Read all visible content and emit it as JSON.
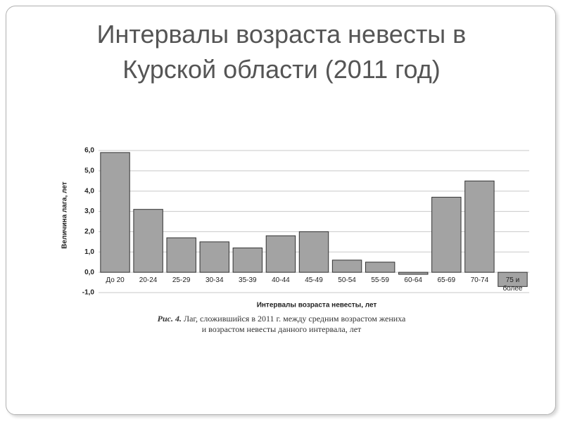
{
  "chart_data": {
    "type": "bar",
    "title": "Интервалы возраста невесты в Курской области (2011 год)",
    "y_label": "Величина лага, лет",
    "x_label": "Интервалы возраста невесты, лет",
    "caption": {
      "figure_label": "Рис. 4.",
      "lines": [
        "Лаг, сложившийся в 2011 г. между средним возрастом жениха",
        "и возрастом невесты данного интервала, лет"
      ]
    },
    "categories": [
      "До 20",
      "20-24",
      "25-29",
      "30-34",
      "35-39",
      "40-44",
      "45-49",
      "50-54",
      "55-59",
      "60-64",
      "65-69",
      "70-74",
      "75 и более"
    ],
    "values": [
      5.9,
      3.1,
      1.7,
      1.5,
      1.2,
      1.8,
      2.0,
      0.6,
      0.5,
      -0.1,
      3.7,
      4.5,
      -0.7
    ],
    "color": "#a3a3a3",
    "ylim": [
      -1,
      6
    ],
    "yticks": [
      {
        "value": -1,
        "label": "-1,0"
      },
      {
        "value": 0,
        "label": "0,0"
      },
      {
        "value": 1,
        "label": "1,0"
      },
      {
        "value": 2,
        "label": "2,0"
      },
      {
        "value": 3,
        "label": "3,0"
      },
      {
        "value": 4,
        "label": "4,0"
      },
      {
        "value": 5,
        "label": "5,0"
      },
      {
        "value": 6,
        "label": "6,0"
      }
    ],
    "grid": true
  }
}
